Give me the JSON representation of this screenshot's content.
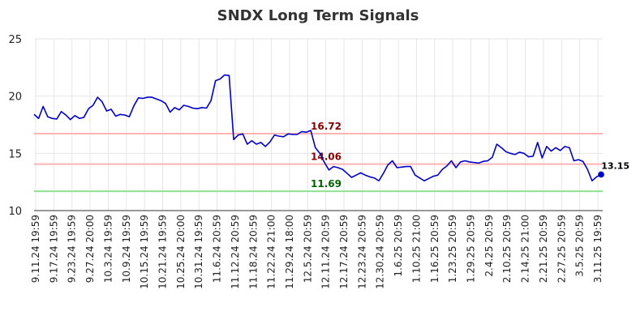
{
  "chart_data": {
    "type": "line",
    "title": "SNDX Long Term Signals",
    "ylim": [
      10,
      25
    ],
    "yticks": [
      10,
      15,
      20,
      25
    ],
    "grid": true,
    "x_tick_labels": [
      "9.11.24 19:59",
      "9.17.24 19:59",
      "9.23.24 19:59",
      "9.27.24 20:00",
      "10.3.24 19:59",
      "10.9.24 19:59",
      "10.15.24 19:59",
      "10.21.24 19:59",
      "10.25.24 20:00",
      "10.31.24 19:59",
      "11.6.24 20:59",
      "11.12.24 20:59",
      "11.18.24 20:59",
      "11.22.24 21:00",
      "11.29.24 18:00",
      "12.5.24 20:59",
      "12.11.24 20:59",
      "12.17.24 20:59",
      "12.23.24 20:59",
      "12.30.24 20:59",
      "1.6.25 20:59",
      "1.10.25 21:00",
      "1.16.25 20:59",
      "1.23.25 20:59",
      "1.29.25 20:59",
      "2.4.25 20:59",
      "2.10.25 20:59",
      "2.14.25 21:00",
      "2.21.25 20:59",
      "2.27.25 20:59",
      "3.5.25 20:59",
      "3.11.25 19:59"
    ],
    "series": [
      {
        "color": "#0000cc",
        "values": [
          18.4,
          18.05,
          19.1,
          18.2,
          18.05,
          18.0,
          18.65,
          18.35,
          17.95,
          18.3,
          18.05,
          18.15,
          18.9,
          19.2,
          19.9,
          19.5,
          18.7,
          18.85,
          18.25,
          18.4,
          18.35,
          18.2,
          19.15,
          19.85,
          19.8,
          19.9,
          19.9,
          19.75,
          19.6,
          19.35,
          18.6,
          19.0,
          18.8,
          19.2,
          19.1,
          18.95,
          18.9,
          19.0,
          18.95,
          19.6,
          21.35,
          21.5,
          21.85,
          21.8,
          16.2,
          16.6,
          16.7,
          15.8,
          16.1,
          15.8,
          15.95,
          15.6,
          16.0,
          16.6,
          16.5,
          16.45,
          16.7,
          16.65,
          16.65,
          16.9,
          16.85,
          17.0,
          15.5,
          15.0,
          14.2,
          13.55,
          13.85,
          13.75,
          13.6,
          13.25,
          12.9,
          13.1,
          13.3,
          13.1,
          12.95,
          12.85,
          12.6,
          13.25,
          14.0,
          14.35,
          13.75,
          13.8,
          13.85,
          13.85,
          13.1,
          12.85,
          12.6,
          12.8,
          13.0,
          13.1,
          13.6,
          13.9,
          14.35,
          13.75,
          14.25,
          14.35,
          14.25,
          14.2,
          14.15,
          14.3,
          14.35,
          14.65,
          15.8,
          15.5,
          15.15,
          15.0,
          14.9,
          15.1,
          15.0,
          14.7,
          14.75,
          15.95,
          14.6,
          15.6,
          15.2,
          15.5,
          15.25,
          15.6,
          15.5,
          14.35,
          14.45,
          14.3,
          13.6,
          12.6,
          12.95,
          13.15
        ]
      }
    ],
    "hlines": [
      {
        "value": 16.72,
        "label": "16.72",
        "color": "#ffb3b3",
        "label_color": "#8b0000"
      },
      {
        "value": 14.06,
        "label": "14.06",
        "color": "#ffb3b3",
        "label_color": "#8b0000"
      },
      {
        "value": 11.69,
        "label": "11.69",
        "color": "#90e090",
        "label_color": "#006400"
      }
    ],
    "last_point": {
      "value": 13.15,
      "label": "13.15"
    }
  }
}
